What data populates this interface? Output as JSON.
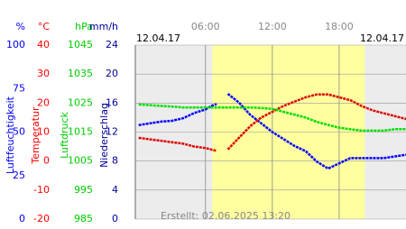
{
  "chart_data": {
    "type": "line",
    "dates": [
      "12.04.17",
      "12.04.17"
    ],
    "footer": "Erstellt: 02.06.2025 13:20",
    "xlim": [
      -0.3,
      24
    ],
    "xticks": [
      {
        "value": 6,
        "label": "06:00"
      },
      {
        "value": 12,
        "label": "12:00"
      },
      {
        "value": 18,
        "label": "18:00"
      }
    ],
    "daylight": [
      6.6,
      20.3
    ],
    "axes": [
      {
        "unit": "%",
        "label": "Luftfeuchtigkeit",
        "color": "#0000ff",
        "lim": [
          0,
          100
        ],
        "ticks": [
          0,
          25,
          50,
          75,
          100
        ]
      },
      {
        "unit": "°C",
        "label": "Temperatur",
        "color": "#ff0000",
        "lim": [
          -20,
          40
        ],
        "ticks": [
          -20,
          -10,
          0,
          10,
          20,
          30,
          40
        ]
      },
      {
        "unit": "hPa",
        "label": "Luftdruck",
        "color": "#00cc00",
        "lim": [
          985,
          1045
        ],
        "ticks": [
          985,
          995,
          1005,
          1015,
          1025,
          1035,
          1045
        ]
      },
      {
        "unit": "mm/h",
        "label": "Niederschlag",
        "color": "#000099",
        "lim": [
          0,
          24
        ],
        "ticks": [
          0,
          4,
          8,
          12,
          16,
          20,
          24
        ]
      }
    ],
    "x": [
      0,
      1,
      2,
      3,
      4,
      5,
      6,
      6.5,
      7,
      7.5,
      8,
      9,
      10,
      11,
      12,
      13,
      14,
      15,
      16,
      17,
      18,
      19,
      20,
      21,
      22,
      23,
      24
    ],
    "series": [
      {
        "axis": 0,
        "color": "#0000ff",
        "values": [
          54,
          55,
          56,
          56.5,
          58,
          61,
          63,
          65,
          66,
          null,
          72,
          67,
          60,
          55,
          50,
          46,
          42,
          39,
          33,
          29,
          32,
          35,
          35,
          35,
          35,
          36,
          37
        ]
      },
      {
        "axis": 1,
        "color": "#dd0000",
        "values": [
          8,
          7.5,
          7,
          6.5,
          6,
          5,
          4.5,
          4,
          3.5,
          null,
          4,
          8,
          12,
          15,
          17,
          19,
          20.5,
          22,
          23,
          23,
          22,
          21,
          19,
          17.5,
          16.5,
          15.5,
          14.5
        ]
      },
      {
        "axis": 2,
        "color": "#00dd00",
        "values": [
          1024.5,
          1024.3,
          1024,
          1023.8,
          1023.5,
          1023.5,
          1023.5,
          1023.5,
          1023.5,
          1023.5,
          1023.5,
          1023.5,
          1023.5,
          1023.3,
          1023,
          1022,
          1021,
          1020,
          1018.5,
          1017.5,
          1016.5,
          1016,
          1015.5,
          1015.5,
          1015.5,
          1016,
          1016
        ]
      }
    ]
  }
}
